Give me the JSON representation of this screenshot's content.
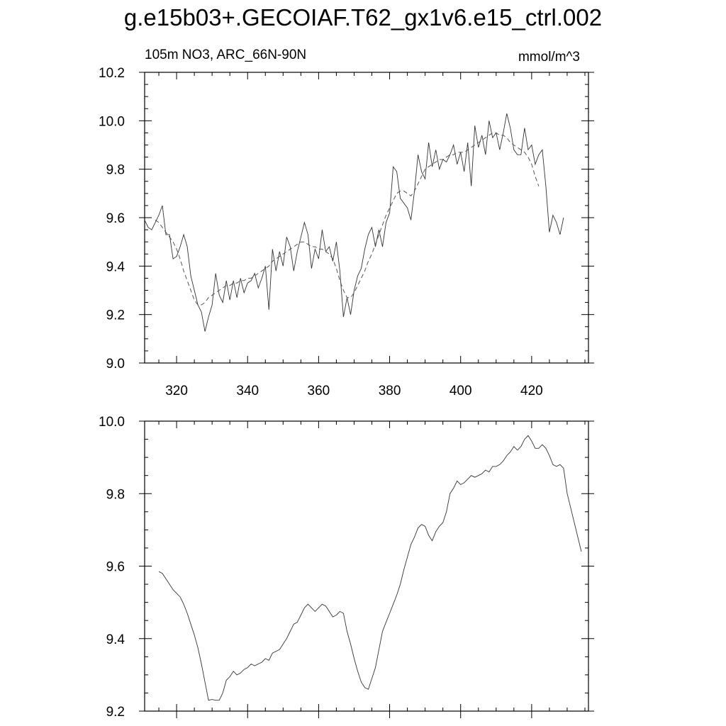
{
  "title": "g.e15b03+.GECOIAF.T62_gx1v6.e15_ctrl.002",
  "chart_data": [
    {
      "type": "line",
      "subtitle_left": "105m NO3, ARC_66N-90N",
      "subtitle_right": "mmol/m^3",
      "xlim": [
        311,
        436
      ],
      "ylim": [
        9.0,
        10.2
      ],
      "xticks": [
        320,
        340,
        360,
        380,
        400,
        420
      ],
      "xtick_labels": [
        "320",
        "340",
        "360",
        "380",
        "400",
        "420"
      ],
      "yticks": [
        9.0,
        9.2,
        9.4,
        9.6,
        9.8,
        10.0,
        10.2
      ],
      "ytick_labels": [
        "9.0",
        "9.2",
        "9.4",
        "9.6",
        "9.8",
        "10.0",
        "10.2"
      ],
      "series": [
        {
          "style": "solid",
          "x_start": 311,
          "x_step": 1,
          "values": [
            9.59,
            9.56,
            9.55,
            9.58,
            9.61,
            9.65,
            9.53,
            9.53,
            9.43,
            9.44,
            9.48,
            9.53,
            9.48,
            9.36,
            9.3,
            9.24,
            9.21,
            9.13,
            9.19,
            9.24,
            9.37,
            9.28,
            9.25,
            9.34,
            9.26,
            9.34,
            9.27,
            9.35,
            9.29,
            9.33,
            9.34,
            9.37,
            9.31,
            9.35,
            9.4,
            9.22,
            9.47,
            9.38,
            9.46,
            9.4,
            9.52,
            9.48,
            9.38,
            9.46,
            9.52,
            9.58,
            9.53,
            9.39,
            9.47,
            9.43,
            9.55,
            9.46,
            9.48,
            9.42,
            9.5,
            9.38,
            9.19,
            9.27,
            9.2,
            9.3,
            9.36,
            9.39,
            9.47,
            9.53,
            9.56,
            9.48,
            9.55,
            9.48,
            9.58,
            9.62,
            9.81,
            9.79,
            9.68,
            9.66,
            9.64,
            9.59,
            9.71,
            9.86,
            9.79,
            9.76,
            9.91,
            9.81,
            9.88,
            9.8,
            9.84,
            9.83,
            9.86,
            9.9,
            9.82,
            9.87,
            9.79,
            9.91,
            9.73,
            9.98,
            9.89,
            9.94,
            9.86,
            10.0,
            9.93,
            9.95,
            9.88,
            9.95,
            10.03,
            9.97,
            9.88,
            9.86,
            9.86,
            9.97,
            9.88,
            9.9,
            9.82,
            9.86,
            9.88,
            9.73,
            9.54,
            9.61,
            9.58,
            9.53,
            9.6
          ]
        },
        {
          "style": "dashed",
          "x_start": 314,
          "x_step": 1,
          "values": [
            9.59,
            9.58,
            9.56,
            9.54,
            9.52,
            9.5,
            9.47,
            9.43,
            9.38,
            9.34,
            9.3,
            9.26,
            9.24,
            9.24,
            9.25,
            9.27,
            9.28,
            9.29,
            9.3,
            9.31,
            9.32,
            9.32,
            9.33,
            9.33,
            9.34,
            9.34,
            9.35,
            9.35,
            9.36,
            9.37,
            9.38,
            9.39,
            9.4,
            9.42,
            9.43,
            9.44,
            9.45,
            9.46,
            9.47,
            9.48,
            9.49,
            9.5,
            9.5,
            9.49,
            9.48,
            9.48,
            9.47,
            9.47,
            9.46,
            9.45,
            9.43,
            9.39,
            9.34,
            9.3,
            9.27,
            9.27,
            9.29,
            9.32,
            9.35,
            9.38,
            9.42,
            9.45,
            9.49,
            9.53,
            9.57,
            9.61,
            9.64,
            9.67,
            9.7,
            9.71,
            9.71,
            9.7,
            9.69,
            9.71,
            9.74,
            9.77,
            9.8,
            9.81,
            9.82,
            9.83,
            9.84,
            9.84,
            9.85,
            9.86,
            9.86,
            9.87,
            9.87,
            9.87,
            9.88,
            9.89,
            9.9,
            9.91,
            9.92,
            9.93,
            9.94,
            9.95,
            9.95,
            9.94,
            9.94,
            9.93,
            9.91,
            9.9,
            9.89,
            9.88,
            9.87,
            9.85,
            9.82,
            9.77,
            9.73
          ]
        }
      ]
    },
    {
      "type": "line",
      "xlim": [
        311,
        436
      ],
      "ylim": [
        9.2,
        10.0
      ],
      "xticks": [
        320,
        340,
        360,
        380,
        400,
        420
      ],
      "yticks": [
        9.2,
        9.4,
        9.6,
        9.8,
        10.0
      ],
      "ytick_labels": [
        "9.2",
        "9.4",
        "9.6",
        "9.8",
        "10.0"
      ],
      "series": [
        {
          "style": "solid",
          "x_start": 315,
          "x_step": 1,
          "values": [
            9.585,
            9.58,
            9.565,
            9.55,
            9.535,
            9.525,
            9.515,
            9.495,
            9.47,
            9.44,
            9.41,
            9.375,
            9.33,
            9.28,
            9.23,
            9.232,
            9.23,
            9.23,
            9.25,
            9.285,
            9.295,
            9.31,
            9.3,
            9.305,
            9.315,
            9.32,
            9.33,
            9.325,
            9.33,
            9.335,
            9.345,
            9.34,
            9.36,
            9.365,
            9.37,
            9.385,
            9.4,
            9.42,
            9.44,
            9.445,
            9.465,
            9.485,
            9.495,
            9.485,
            9.475,
            9.485,
            9.495,
            9.49,
            9.475,
            9.46,
            9.465,
            9.475,
            9.47,
            9.42,
            9.385,
            9.345,
            9.31,
            9.28,
            9.265,
            9.26,
            9.29,
            9.32,
            9.37,
            9.42,
            9.445,
            9.47,
            9.495,
            9.52,
            9.55,
            9.59,
            9.625,
            9.66,
            9.68,
            9.705,
            9.715,
            9.71,
            9.685,
            9.67,
            9.695,
            9.71,
            9.72,
            9.75,
            9.8,
            9.815,
            9.835,
            9.825,
            9.83,
            9.84,
            9.85,
            9.845,
            9.85,
            9.855,
            9.865,
            9.86,
            9.875,
            9.875,
            9.88,
            9.89,
            9.905,
            9.915,
            9.93,
            9.92,
            9.93,
            9.95,
            9.96,
            9.945,
            9.925,
            9.925,
            9.935,
            9.925,
            9.905,
            9.88,
            9.875,
            9.88,
            9.87,
            9.8,
            9.76,
            9.72,
            9.68,
            9.64
          ]
        }
      ]
    }
  ]
}
